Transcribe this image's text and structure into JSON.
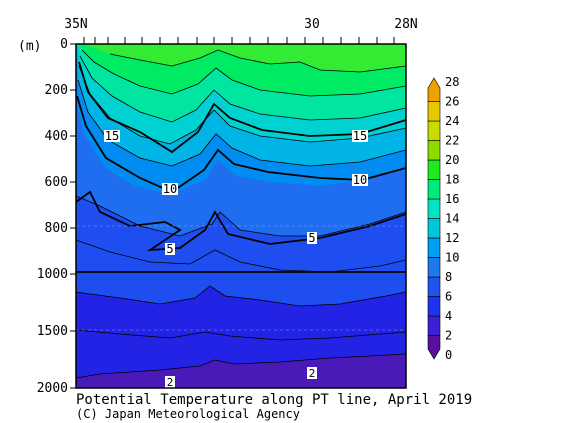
{
  "chart_data": {
    "type": "heatmap",
    "title": "Potential Temperature along PT line, April 2019",
    "credit": "(C) Japan Meteorological Agency",
    "ylabel": "(m)",
    "x_tick_labels": [
      "35N",
      "30",
      "28N"
    ],
    "x_ticks_lat": [
      35,
      30,
      28
    ],
    "xlim_lat": [
      35,
      28
    ],
    "y_tick_values": [
      0,
      200,
      400,
      600,
      800,
      1000,
      1500,
      2000
    ],
    "y_tick_labels": [
      "0",
      "200",
      "400",
      "600",
      "800",
      "1000",
      "1500",
      "2000"
    ],
    "ylim_m": [
      0,
      2000
    ],
    "y_scale": "stretched (0-1000 m expanded, 1000-2000 m compressed)",
    "colorbar": {
      "levels": [
        0,
        2,
        4,
        6,
        8,
        10,
        12,
        14,
        16,
        18,
        20,
        22,
        24,
        26,
        28
      ],
      "labels": [
        "0",
        "2",
        "4",
        "6",
        "8",
        "10",
        "12",
        "14",
        "16",
        "18",
        "20",
        "22",
        "24",
        "26",
        "28"
      ],
      "colors": [
        "#5a0fa0",
        "#3c1fd6",
        "#1e33f0",
        "#1f55ee",
        "#1f78ec",
        "#00a0f0",
        "#00c8dc",
        "#00e6c3",
        "#00eb7d",
        "#1eeb1e",
        "#8cdc00",
        "#c8dc00",
        "#e6c800",
        "#f0a000"
      ]
    },
    "contour_labels": [
      {
        "text": "15",
        "lat": 34.2,
        "depth": 410
      },
      {
        "text": "15",
        "lat": 28.95,
        "depth": 410
      },
      {
        "text": "10",
        "lat": 32.95,
        "depth": 635
      },
      {
        "text": "10",
        "lat": 28.95,
        "depth": 605
      },
      {
        "text": "5",
        "lat": 32.95,
        "depth": 900
      },
      {
        "text": "5",
        "lat": 29.95,
        "depth": 850
      },
      {
        "text": "2",
        "lat": 32.95,
        "depth": 1975
      },
      {
        "text": "2",
        "lat": 29.95,
        "depth": 1860
      }
    ]
  }
}
